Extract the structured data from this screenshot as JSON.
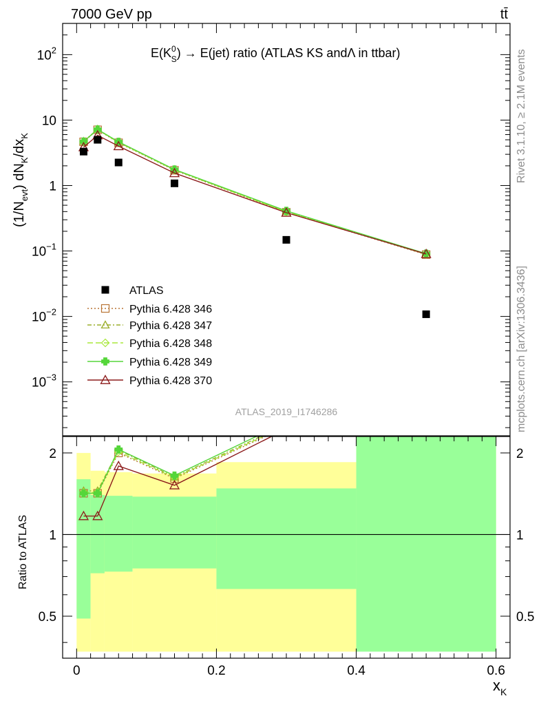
{
  "header": {
    "energy_label": "7000 GeV pp",
    "process_label": "tt̄"
  },
  "side": {
    "rivet_label": "Rivet 3.1.10, ≥ 2.1M events",
    "mcplots_label": "mcplots.cern.ch [arXiv:1306.3436]"
  },
  "chart_data": [
    {
      "type": "scatter",
      "title": "E(K⁰S) → E(jet) ratio (ATLAS KS andΛ in ttbar)",
      "title_parts": {
        "pre": "E(K",
        "sup": "0",
        "sub": "S",
        "post": ") → E(jet) ratio (ATLAS KS andΛ in ttbar)"
      },
      "ylabel": "(1/N_evt) dN_K/dx_K",
      "ylabel_parts": {
        "a": "(1/N",
        "a_sub": "evt",
        "b": ") dN",
        "b_sub": "K",
        "c": "/dx",
        "c_sub": "K"
      },
      "yscale": "log",
      "xlim": [
        -0.02,
        0.62
      ],
      "ylim": [
        0.00015,
        300
      ],
      "y_tick_labels": [
        "10⁻³",
        "10⁻²",
        "10⁻¹",
        "1",
        "10",
        "10²"
      ],
      "watermark": "ATLAS_2019_I1746286",
      "x": [
        0.01,
        0.03,
        0.06,
        0.14,
        0.3,
        0.5
      ],
      "data": {
        "name": "ATLAS",
        "values": [
          3.3,
          5.0,
          2.25,
          1.08,
          0.148,
          0.0108
        ],
        "color": "#000000"
      },
      "series": [
        {
          "name": "Pythia 6.428 346",
          "values": [
            4.65,
            7.1,
            4.5,
            1.71,
            0.39,
            0.088
          ],
          "color": "#b87333",
          "dash": "2,3",
          "marker": "square"
        },
        {
          "name": "Pythia 6.428 347",
          "values": [
            4.75,
            7.25,
            4.6,
            1.75,
            0.4,
            0.089
          ],
          "color": "#9aad2a",
          "dash": "6,3,2,3",
          "marker": "triangle"
        },
        {
          "name": "Pythia 6.428 348",
          "values": [
            4.7,
            7.15,
            4.55,
            1.73,
            0.395,
            0.089
          ],
          "color": "#a8e83a",
          "dash": "8,4",
          "marker": "diamond"
        },
        {
          "name": "Pythia 6.428 349",
          "values": [
            4.7,
            7.2,
            4.65,
            1.76,
            0.41,
            0.091
          ],
          "color": "#55d63a",
          "dash": "",
          "marker": "cross"
        },
        {
          "name": "Pythia 6.428 370",
          "values": [
            3.85,
            5.85,
            4.0,
            1.55,
            0.385,
            0.09
          ],
          "color": "#8b1a1a",
          "dash": "",
          "marker": "triangle-open"
        }
      ],
      "legend_position": "lower-left"
    },
    {
      "type": "line",
      "ylabel": "Ratio to ATLAS",
      "xlabel": "x_K",
      "xlabel_parts": {
        "main": "x",
        "sub": "K"
      },
      "yscale": "log",
      "xlim": [
        -0.02,
        0.62
      ],
      "ylim": [
        0.35,
        2.3
      ],
      "x_tick_labels": [
        "0",
        "0.2",
        "0.4",
        "0.6"
      ],
      "y_tick_labels": [
        "0.5",
        "1",
        "2"
      ],
      "reference_line": 1,
      "band_edges": [
        0.0,
        0.02,
        0.04,
        0.08,
        0.2,
        0.4,
        0.6
      ],
      "band_yellow": [
        [
          0.37,
          2.0
        ],
        [
          0.37,
          1.72
        ],
        [
          0.37,
          1.7
        ],
        [
          0.37,
          1.68
        ],
        [
          0.37,
          1.85
        ],
        [
          0.37,
          2.3
        ]
      ],
      "band_green": [
        [
          0.49,
          1.6
        ],
        [
          0.72,
          1.4
        ],
        [
          0.73,
          1.39
        ],
        [
          0.75,
          1.38
        ],
        [
          0.63,
          1.48
        ],
        [
          0.37,
          2.3
        ]
      ],
      "x": [
        0.01,
        0.03,
        0.06,
        0.14,
        0.3
      ],
      "series": [
        {
          "name": "Pythia 6.428 346",
          "values": [
            1.42,
            1.42,
            2.0,
            1.61,
            2.5
          ]
        },
        {
          "name": "Pythia 6.428 347",
          "values": [
            1.45,
            1.45,
            2.05,
            1.63,
            2.55
          ]
        },
        {
          "name": "Pythia 6.428 348",
          "values": [
            1.43,
            1.43,
            2.02,
            1.62,
            2.52
          ]
        },
        {
          "name": "Pythia 6.428 349",
          "values": [
            1.42,
            1.42,
            2.06,
            1.65,
            2.6
          ]
        },
        {
          "name": "Pythia 6.428 370",
          "values": [
            1.17,
            1.17,
            1.79,
            1.52,
            2.45
          ]
        }
      ]
    }
  ]
}
